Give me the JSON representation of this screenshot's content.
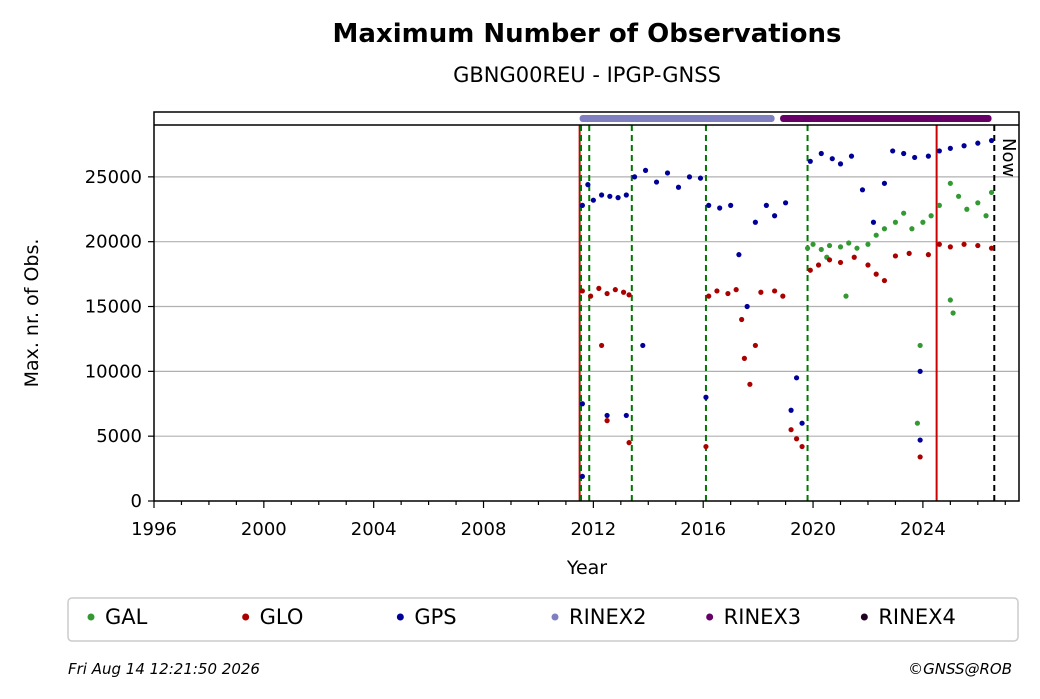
{
  "chart_data": {
    "type": "scatter",
    "title": "Maximum Number of Observations",
    "subtitle": "GBNG00REU - IPGP-GNSS",
    "xlabel": "Year",
    "ylabel": "Max. nr. of Obs.",
    "xlim": [
      1996,
      2027.5
    ],
    "ylim": [
      0,
      29000
    ],
    "x_ticks": [
      1996,
      2000,
      2004,
      2008,
      2012,
      2016,
      2020,
      2024
    ],
    "y_ticks": [
      0,
      5000,
      10000,
      15000,
      20000,
      25000
    ],
    "grid": "horizontal",
    "legend_position": "bottom",
    "now_label": "Now",
    "now_x": 2026.6,
    "event_lines": [
      {
        "x": 2011.5,
        "color": "#cc0000",
        "style": "solid"
      },
      {
        "x": 2024.5,
        "color": "#cc0000",
        "style": "solid"
      },
      {
        "x": 2011.55,
        "color": "#007700",
        "style": "dashed"
      },
      {
        "x": 2011.85,
        "color": "#007700",
        "style": "dashed"
      },
      {
        "x": 2013.4,
        "color": "#007700",
        "style": "dashed"
      },
      {
        "x": 2016.1,
        "color": "#007700",
        "style": "dashed"
      },
      {
        "x": 2019.8,
        "color": "#007700",
        "style": "dashed"
      }
    ],
    "rinex_bars": [
      {
        "name": "RINEX2",
        "start": 2011.5,
        "end": 2018.6,
        "color": "#8080c0"
      },
      {
        "name": "RINEX3",
        "start": 2018.8,
        "end": 2026.5,
        "color": "#660066"
      }
    ],
    "series": [
      {
        "name": "GAL",
        "color": "#339933",
        "points": [
          [
            2019.8,
            19500
          ],
          [
            2020.0,
            19800
          ],
          [
            2020.3,
            19400
          ],
          [
            2020.6,
            19700
          ],
          [
            2021.0,
            19600
          ],
          [
            2021.3,
            19900
          ],
          [
            2021.6,
            19500
          ],
          [
            2022.0,
            19800
          ],
          [
            2022.3,
            20500
          ],
          [
            2022.6,
            21000
          ],
          [
            2023.0,
            21500
          ],
          [
            2023.3,
            22200
          ],
          [
            2023.6,
            21000
          ],
          [
            2024.0,
            21500
          ],
          [
            2024.3,
            22000
          ],
          [
            2024.6,
            22800
          ],
          [
            2025.0,
            24500
          ],
          [
            2025.3,
            23500
          ],
          [
            2025.6,
            22500
          ],
          [
            2026.0,
            23000
          ],
          [
            2026.3,
            22000
          ],
          [
            2026.5,
            23800
          ],
          [
            2020.5,
            18800
          ],
          [
            2021.2,
            15800
          ],
          [
            2023.9,
            12000
          ],
          [
            2023.8,
            6000
          ],
          [
            2025.1,
            14500
          ],
          [
            2025.0,
            15500
          ]
        ]
      },
      {
        "name": "GLO",
        "color": "#aa0000",
        "points": [
          [
            2011.6,
            16200
          ],
          [
            2011.9,
            15800
          ],
          [
            2012.2,
            16400
          ],
          [
            2012.5,
            16000
          ],
          [
            2012.8,
            16300
          ],
          [
            2013.1,
            16100
          ],
          [
            2013.3,
            15900
          ],
          [
            2012.3,
            12000
          ],
          [
            2012.5,
            6200
          ],
          [
            2013.3,
            4500
          ],
          [
            2016.1,
            4200
          ],
          [
            2016.2,
            15800
          ],
          [
            2016.5,
            16200
          ],
          [
            2016.9,
            16000
          ],
          [
            2017.2,
            16300
          ],
          [
            2017.4,
            14000
          ],
          [
            2017.5,
            11000
          ],
          [
            2017.7,
            9000
          ],
          [
            2017.9,
            12000
          ],
          [
            2018.1,
            16100
          ],
          [
            2018.6,
            16200
          ],
          [
            2018.9,
            15800
          ],
          [
            2019.2,
            5500
          ],
          [
            2019.4,
            4800
          ],
          [
            2019.6,
            4200
          ],
          [
            2019.9,
            17800
          ],
          [
            2020.2,
            18200
          ],
          [
            2020.6,
            18600
          ],
          [
            2021.0,
            18400
          ],
          [
            2021.5,
            18800
          ],
          [
            2022.0,
            18200
          ],
          [
            2022.3,
            17500
          ],
          [
            2022.6,
            17000
          ],
          [
            2023.0,
            18900
          ],
          [
            2023.5,
            19100
          ],
          [
            2023.9,
            3400
          ],
          [
            2024.2,
            19000
          ],
          [
            2024.6,
            19800
          ],
          [
            2025.0,
            19600
          ],
          [
            2025.5,
            19800
          ],
          [
            2026.0,
            19700
          ],
          [
            2026.5,
            19500
          ]
        ]
      },
      {
        "name": "GPS",
        "color": "#000099",
        "points": [
          [
            2011.6,
            22800
          ],
          [
            2011.8,
            24400
          ],
          [
            2012.0,
            23200
          ],
          [
            2012.3,
            23600
          ],
          [
            2012.6,
            23500
          ],
          [
            2012.9,
            23400
          ],
          [
            2013.2,
            23600
          ],
          [
            2011.6,
            1900
          ],
          [
            2011.6,
            7500
          ],
          [
            2012.5,
            6600
          ],
          [
            2013.2,
            6600
          ],
          [
            2013.8,
            12000
          ],
          [
            2013.5,
            25000
          ],
          [
            2013.9,
            25500
          ],
          [
            2014.3,
            24600
          ],
          [
            2014.7,
            25300
          ],
          [
            2015.1,
            24200
          ],
          [
            2015.5,
            25000
          ],
          [
            2015.9,
            24900
          ],
          [
            2016.1,
            8000
          ],
          [
            2016.2,
            22800
          ],
          [
            2016.6,
            22600
          ],
          [
            2017.0,
            22800
          ],
          [
            2017.3,
            19000
          ],
          [
            2017.6,
            15000
          ],
          [
            2017.9,
            21500
          ],
          [
            2018.3,
            22800
          ],
          [
            2018.6,
            22000
          ],
          [
            2019.0,
            23000
          ],
          [
            2019.2,
            7000
          ],
          [
            2019.4,
            9500
          ],
          [
            2019.6,
            6000
          ],
          [
            2019.9,
            26200
          ],
          [
            2020.3,
            26800
          ],
          [
            2020.7,
            26400
          ],
          [
            2021.0,
            26000
          ],
          [
            2021.4,
            26600
          ],
          [
            2021.8,
            24000
          ],
          [
            2022.2,
            21500
          ],
          [
            2022.6,
            24500
          ],
          [
            2022.9,
            27000
          ],
          [
            2023.3,
            26800
          ],
          [
            2023.7,
            26500
          ],
          [
            2023.9,
            4700
          ],
          [
            2023.9,
            10000
          ],
          [
            2024.2,
            26600
          ],
          [
            2024.6,
            27000
          ],
          [
            2025.0,
            27200
          ],
          [
            2025.5,
            27400
          ],
          [
            2026.0,
            27600
          ],
          [
            2026.5,
            27800
          ]
        ]
      }
    ],
    "legend": [
      {
        "label": "GAL",
        "color": "#339933"
      },
      {
        "label": "GLO",
        "color": "#aa0000"
      },
      {
        "label": "GPS",
        "color": "#000099"
      },
      {
        "label": "RINEX2",
        "color": "#8080c0"
      },
      {
        "label": "RINEX3",
        "color": "#660066"
      },
      {
        "label": "RINEX4",
        "color": "#220022"
      }
    ]
  },
  "footer": {
    "timestamp": "Fri Aug 14 12:21:50 2026",
    "copyright": "©GNSS@ROB"
  }
}
